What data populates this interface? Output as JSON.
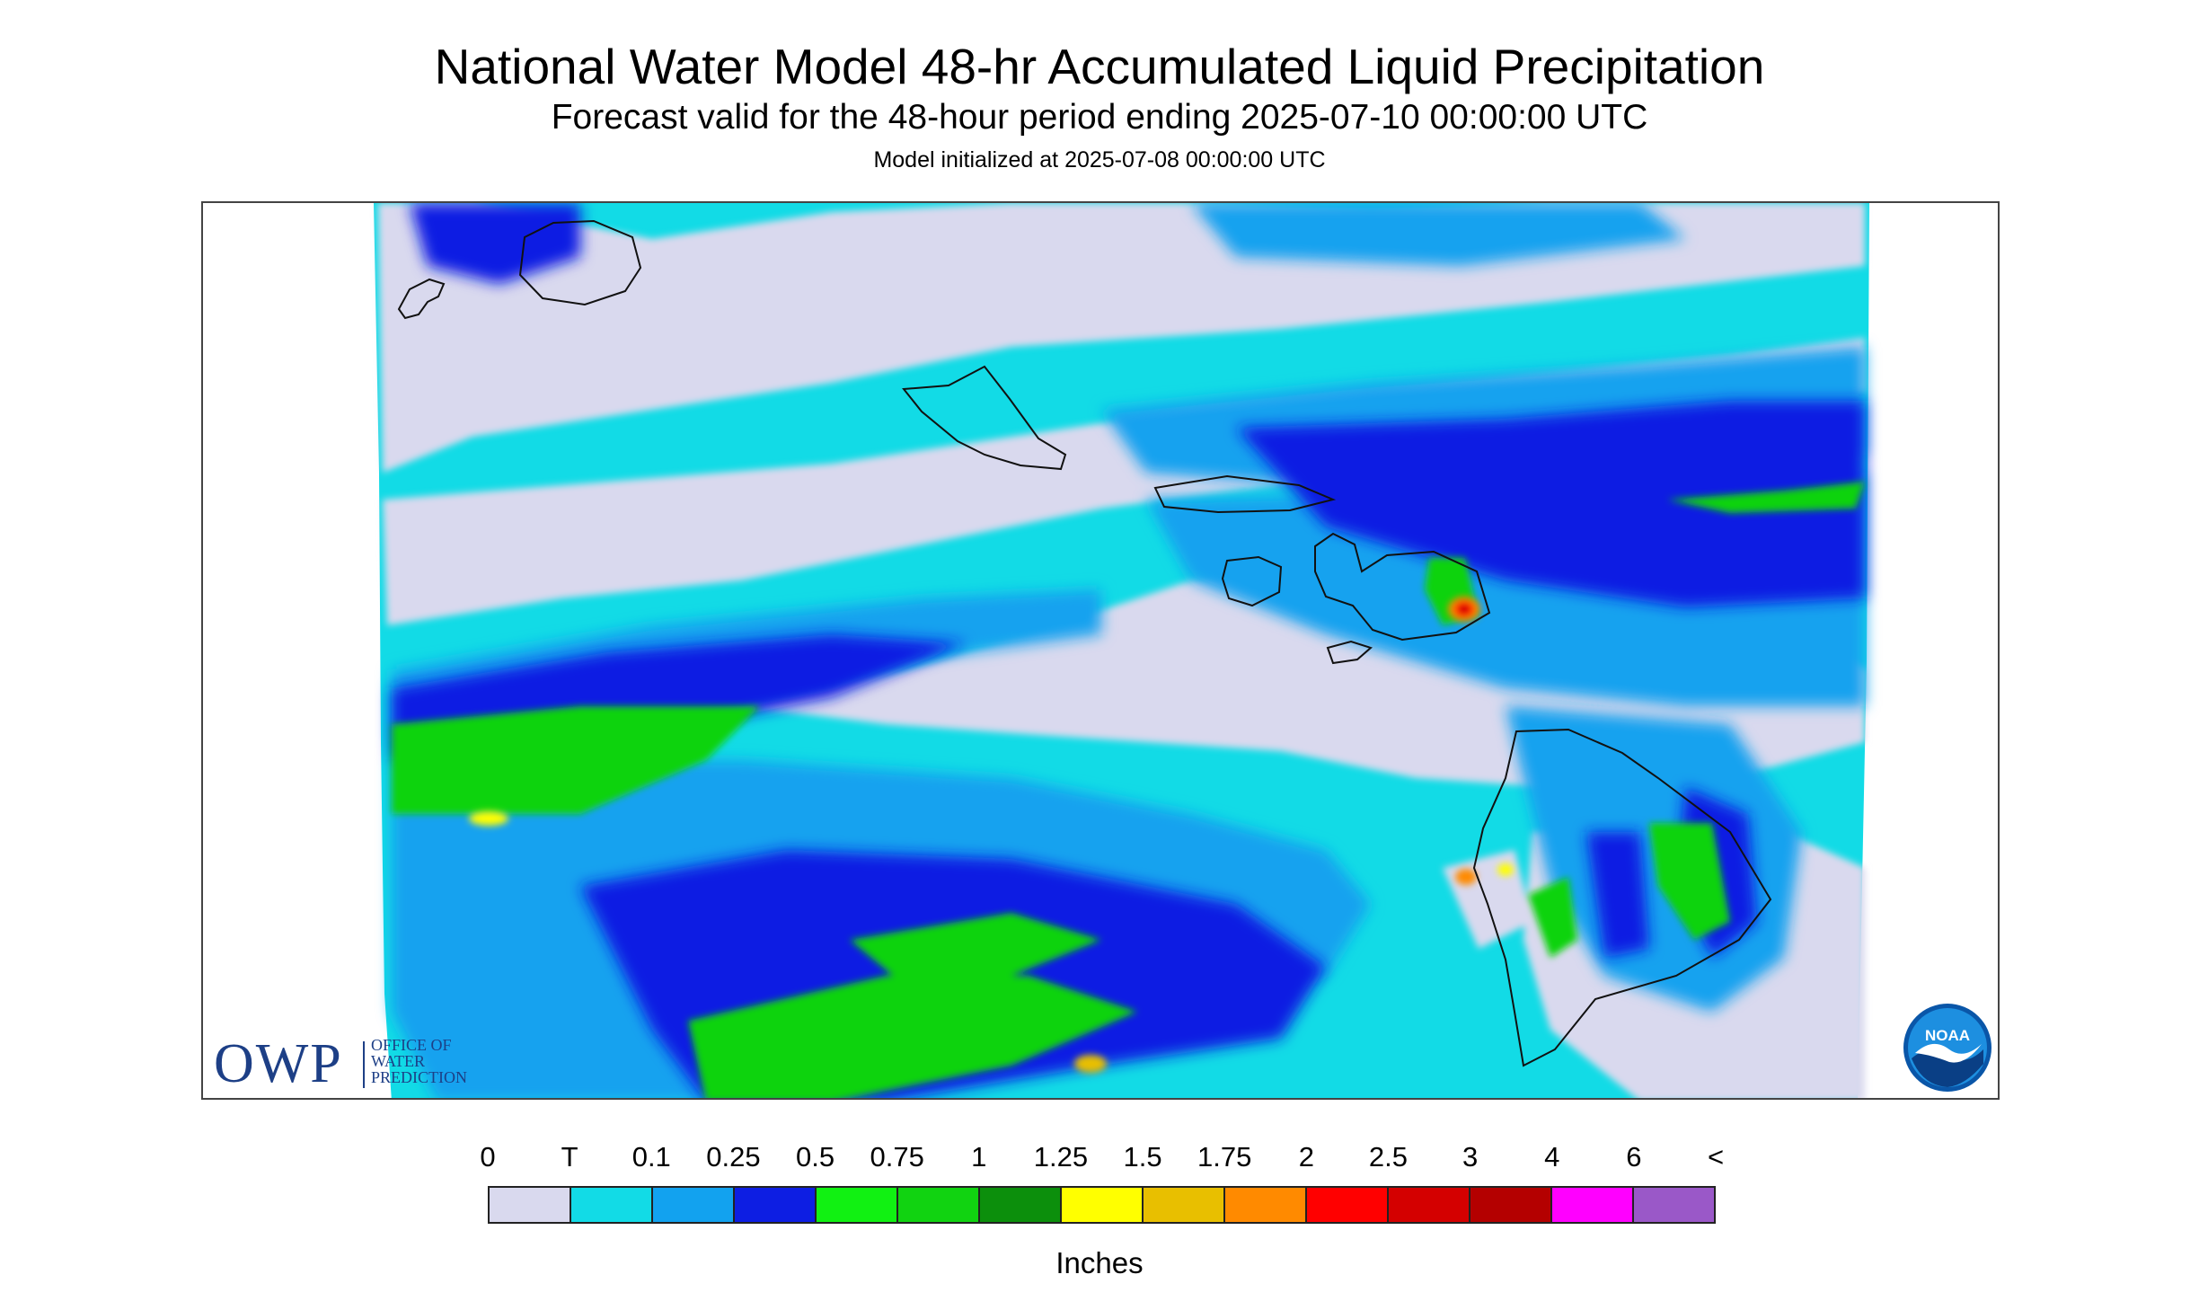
{
  "title": "National Water Model 48-hr Accumulated Liquid Precipitation",
  "subtitle": "Forecast valid for the 48-hour period ending 2025-07-10 00:00:00 UTC",
  "init_line": "Model initialized at 2025-07-08 00:00:00 UTC",
  "legend": {
    "labels": [
      "0",
      "T",
      "0.1",
      "0.25",
      "0.5",
      "0.75",
      "1",
      "1.25",
      "1.5",
      "1.75",
      "2",
      "2.5",
      "3",
      "4",
      "6",
      "<"
    ],
    "colors": [
      "#d9d9ee",
      "#12dbe6",
      "#12a2ef",
      "#0d1ee3",
      "#11f112",
      "#11d311",
      "#0c8f0c",
      "#ffff00",
      "#e8bf00",
      "#ff8a00",
      "#ff0000",
      "#d40000",
      "#b40000",
      "#ff00ff",
      "#9a58c8"
    ],
    "units": "Inches"
  },
  "logos": {
    "owp": {
      "big": "OWP",
      "lines": [
        "OFFICE OF",
        "WATER",
        "PREDICTION"
      ]
    },
    "noaa": {
      "text": "NOAA",
      "icon": "noaa-seal-icon"
    }
  }
}
